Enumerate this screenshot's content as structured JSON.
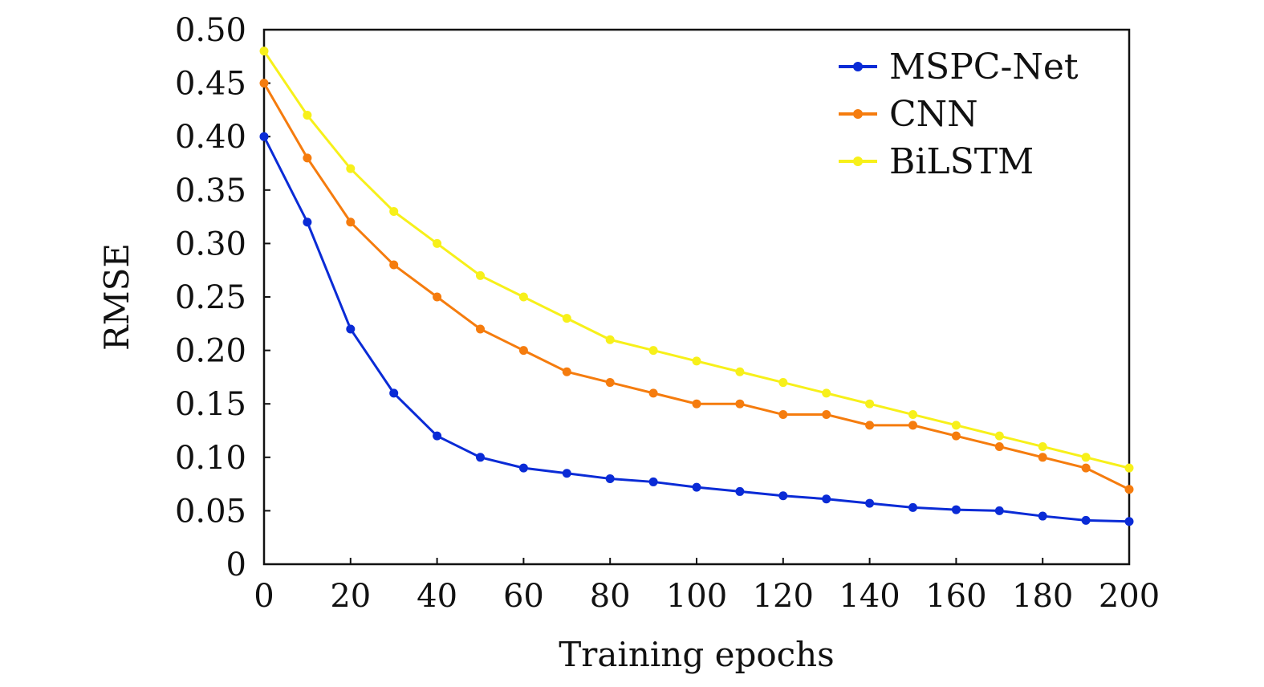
{
  "chart_data": {
    "type": "line",
    "title": "",
    "xlabel": "Training epochs",
    "ylabel": "RMSE",
    "xlim": [
      0,
      200
    ],
    "ylim": [
      0,
      0.5
    ],
    "xticks": [
      "0",
      "20",
      "40",
      "60",
      "80",
      "100",
      "120",
      "140",
      "160",
      "180",
      "200"
    ],
    "yticks": [
      "0",
      "0.05",
      "0.10",
      "0.15",
      "0.20",
      "0.25",
      "0.30",
      "0.35",
      "0.40",
      "0.45",
      "0.50"
    ],
    "grid": false,
    "legend_position": "top-right",
    "x": [
      0,
      10,
      20,
      30,
      40,
      50,
      60,
      70,
      80,
      90,
      100,
      110,
      120,
      130,
      140,
      150,
      160,
      170,
      180,
      190,
      200
    ],
    "series": [
      {
        "name": "MSPC-Net",
        "color": "#0a2bd6",
        "values": [
          0.4,
          0.32,
          0.22,
          0.16,
          0.12,
          0.1,
          0.09,
          0.085,
          0.08,
          0.077,
          0.072,
          0.068,
          0.064,
          0.061,
          0.057,
          0.053,
          0.051,
          0.05,
          0.045,
          0.041,
          0.04
        ]
      },
      {
        "name": "CNN",
        "color": "#f57c0e",
        "values": [
          0.45,
          0.38,
          0.32,
          0.28,
          0.25,
          0.22,
          0.2,
          0.18,
          0.17,
          0.16,
          0.15,
          0.15,
          0.14,
          0.14,
          0.13,
          0.13,
          0.12,
          0.11,
          0.1,
          0.09,
          0.07
        ]
      },
      {
        "name": "BiLSTM",
        "color": "#f7f01a",
        "values": [
          0.48,
          0.42,
          0.37,
          0.33,
          0.3,
          0.27,
          0.25,
          0.23,
          0.21,
          0.2,
          0.19,
          0.18,
          0.17,
          0.16,
          0.15,
          0.14,
          0.13,
          0.12,
          0.11,
          0.1,
          0.09
        ]
      }
    ]
  }
}
